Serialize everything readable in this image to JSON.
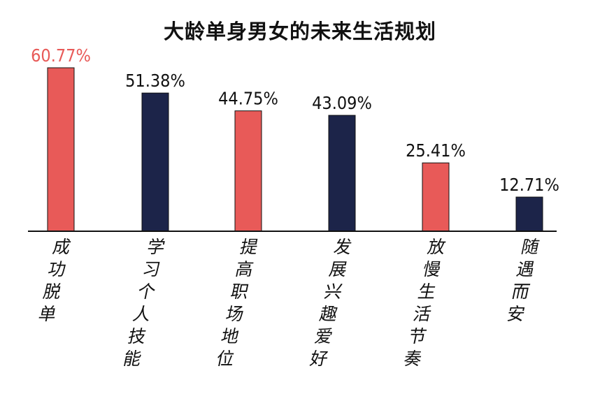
{
  "chart_data": {
    "type": "bar",
    "title": "大龄单身男女的未来生活规划",
    "categories": [
      "成功脱单",
      "学习个人技能",
      "提高职场地位",
      "发展兴趣爱好",
      "放慢生活节奏",
      "随遇而安"
    ],
    "values": [
      60.77,
      51.38,
      44.75,
      43.09,
      25.41,
      12.71
    ],
    "value_labels": [
      "60.77%",
      "51.38%",
      "44.75%",
      "43.09%",
      "25.41%",
      "12.71%"
    ],
    "bar_colors": [
      "#e85a58",
      "#1c2449",
      "#e85a58",
      "#1c2449",
      "#e85a58",
      "#1c2449"
    ],
    "label_colors": [
      "#e85a58",
      "#111111",
      "#111111",
      "#111111",
      "#111111",
      "#111111"
    ],
    "ylim": [
      0,
      60.77
    ],
    "grid": false,
    "legend": "none"
  }
}
